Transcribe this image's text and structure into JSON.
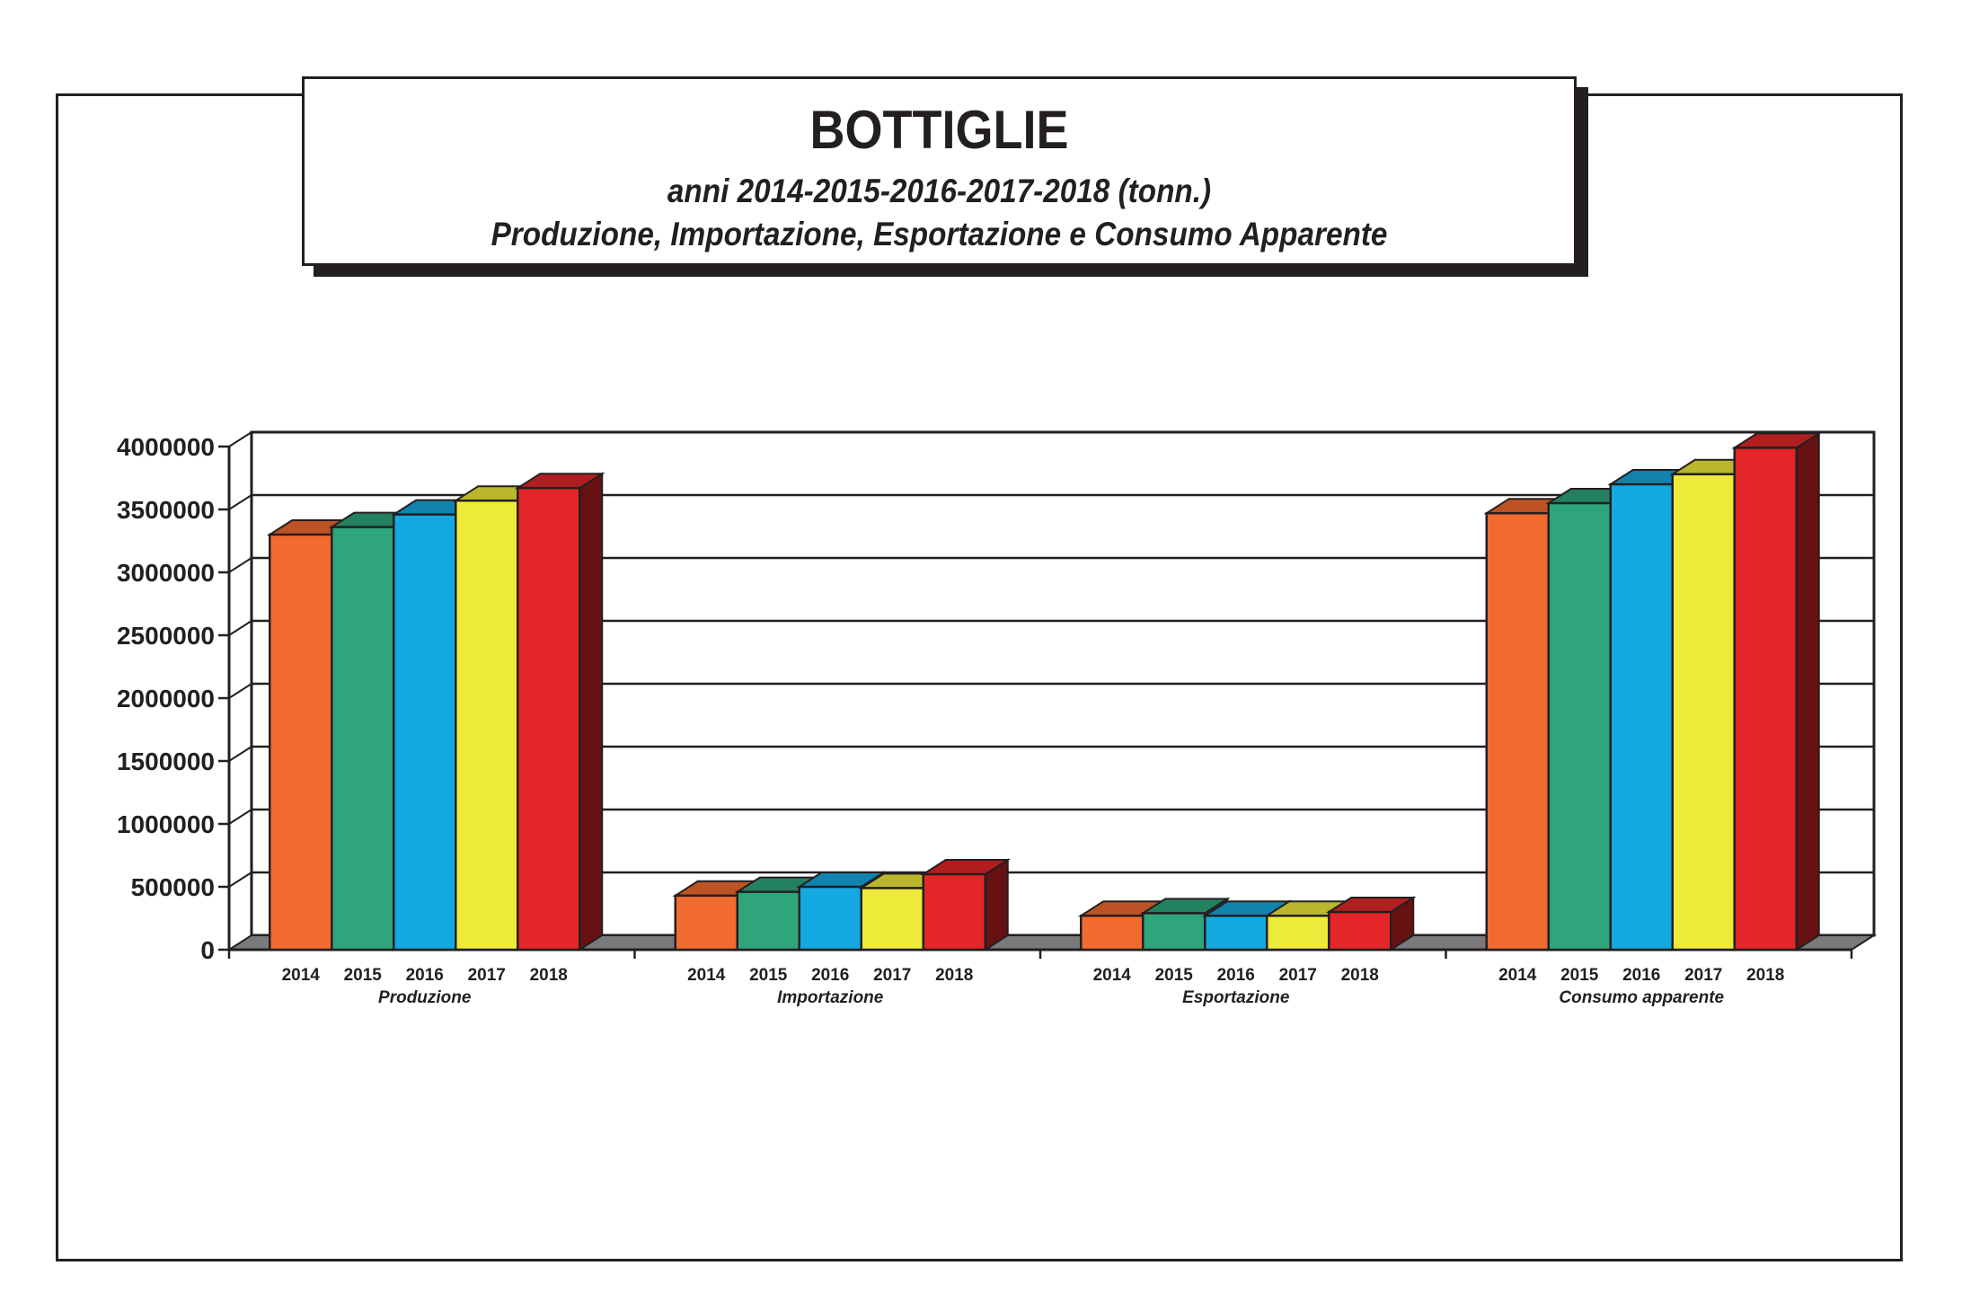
{
  "title": "BOTTIGLIE",
  "subtitle_line1": "anni 2014-2015-2016-2017-2018 (tonn.)",
  "subtitle_line2": "Produzione, Importazione, Esportazione e Consumo Apparente",
  "chart_data": {
    "type": "bar",
    "style": "3d-clustered",
    "categories": [
      "Produzione",
      "Importazione",
      "Esportazione",
      "Consumo apparente"
    ],
    "series": [
      {
        "name": "2014",
        "color": "#f26b2e",
        "values": [
          3300000,
          430000,
          270000,
          3470000
        ]
      },
      {
        "name": "2015",
        "color": "#2ea57a",
        "values": [
          3360000,
          460000,
          290000,
          3550000
        ]
      },
      {
        "name": "2016",
        "color": "#14a9e0",
        "values": [
          3460000,
          500000,
          270000,
          3700000
        ]
      },
      {
        "name": "2017",
        "color": "#eeea3a",
        "values": [
          3570000,
          490000,
          270000,
          3780000
        ]
      },
      {
        "name": "2018",
        "color": "#e32628",
        "values": [
          3670000,
          600000,
          300000,
          3990000
        ]
      }
    ],
    "ylim": [
      0,
      4000000
    ],
    "yticks": [
      "0",
      "500000",
      "1000000",
      "1500000",
      "2000000",
      "2500000",
      "3000000",
      "3500000",
      "4000000"
    ],
    "grid": true,
    "legend": "none"
  }
}
